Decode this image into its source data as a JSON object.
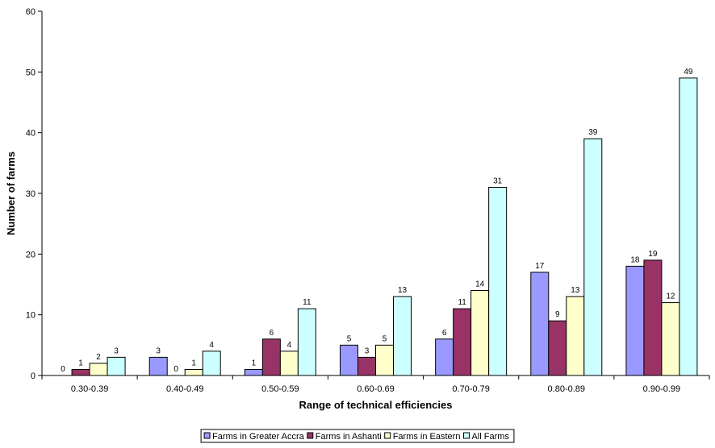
{
  "chart_data": {
    "type": "bar",
    "title": "",
    "xlabel": "Range of technical efficiencies",
    "ylabel": "Number of farms",
    "ylim": [
      0,
      60
    ],
    "yticks": [
      0,
      10,
      20,
      30,
      40,
      50,
      60
    ],
    "grid": false,
    "legend_position": "bottom",
    "categories": [
      "0.30-0.39",
      "0.40-0.49",
      "0.50-0.59",
      "0.60-0.69",
      "0.70-0.79",
      "0.80-0.89",
      "0.90-0.99"
    ],
    "series": [
      {
        "name": "Farms in Greater Accra",
        "color": "#9999ff",
        "values": [
          0,
          3,
          1,
          5,
          6,
          17,
          18
        ]
      },
      {
        "name": "Farms in Ashanti",
        "color": "#993366",
        "values": [
          1,
          0,
          6,
          3,
          11,
          9,
          19
        ]
      },
      {
        "name": "Farms in Eastern",
        "color": "#ffffcc",
        "values": [
          2,
          1,
          4,
          5,
          14,
          13,
          12
        ]
      },
      {
        "name": "All Farms",
        "color": "#ccffff",
        "values": [
          3,
          4,
          11,
          13,
          31,
          39,
          49
        ]
      }
    ]
  }
}
